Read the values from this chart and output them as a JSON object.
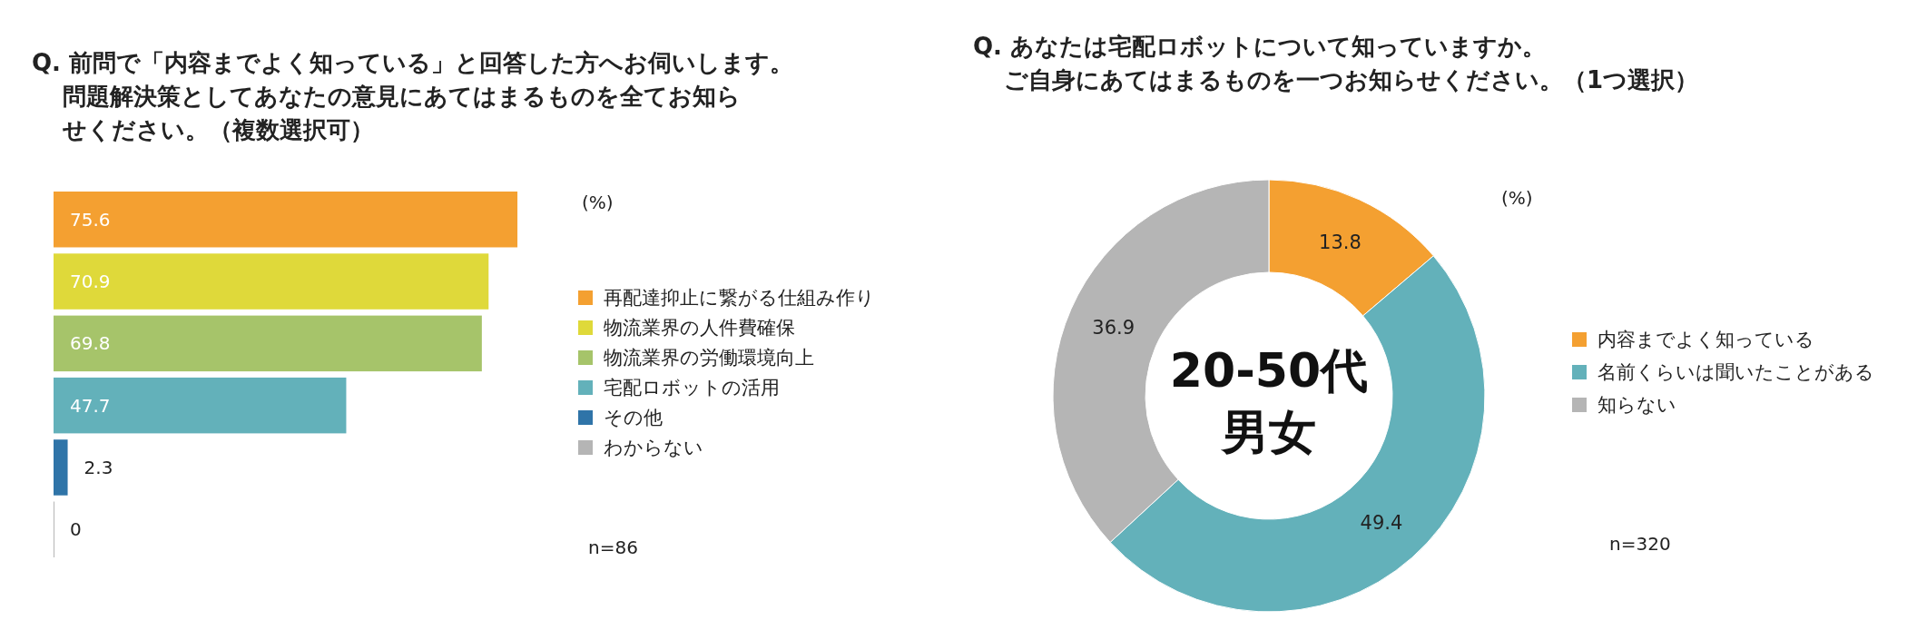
{
  "chart_data": [
    {
      "type": "bar",
      "orientation": "horizontal",
      "title": "Q. 前問で「内容までよく知っている」と回答した方へお伺いします。問題解決策としてあなたの意見にあてはまるものを全てお知らせください。（複数選択可）",
      "categories": [
        null
      ],
      "series": [
        {
          "name": "再配達抑止に繋がる仕組み作り",
          "color": "#f4a031",
          "values": [
            75.6
          ]
        },
        {
          "name": "物流業界の人件費確保",
          "color": "#dfd93a",
          "values": [
            70.9
          ]
        },
        {
          "name": "物流業界の労働環境向上",
          "color": "#a6c46a",
          "values": [
            69.8
          ]
        },
        {
          "name": "宅配ロボットの活用",
          "color": "#63b1ba",
          "values": [
            47.7
          ]
        },
        {
          "name": "その他",
          "color": "#2f74a8",
          "values": [
            2.3
          ]
        },
        {
          "name": "わからない",
          "color": "#b5b5b5",
          "values": [
            0
          ]
        }
      ],
      "data_labels": true,
      "legend": "right",
      "annotations": [
        "(%)",
        "n=86"
      ]
    },
    {
      "type": "donut",
      "title": "Q. あなたは宅配ロボットについて知っていますか。ご自身にあてはまるものを一つお知らせください。（1つ選択）",
      "categories": [
        "内容までよく知っている",
        "名前くらいは聞いたことがある",
        "知らない"
      ],
      "values": [
        13.8,
        49.4,
        36.9
      ],
      "colors": [
        "#f4a031",
        "#63b1ba",
        "#b5b5b5"
      ],
      "data_labels": true,
      "legend": "right",
      "annotations": [
        "20-50代",
        "男女",
        "(%)",
        "n=320"
      ]
    }
  ]
}
